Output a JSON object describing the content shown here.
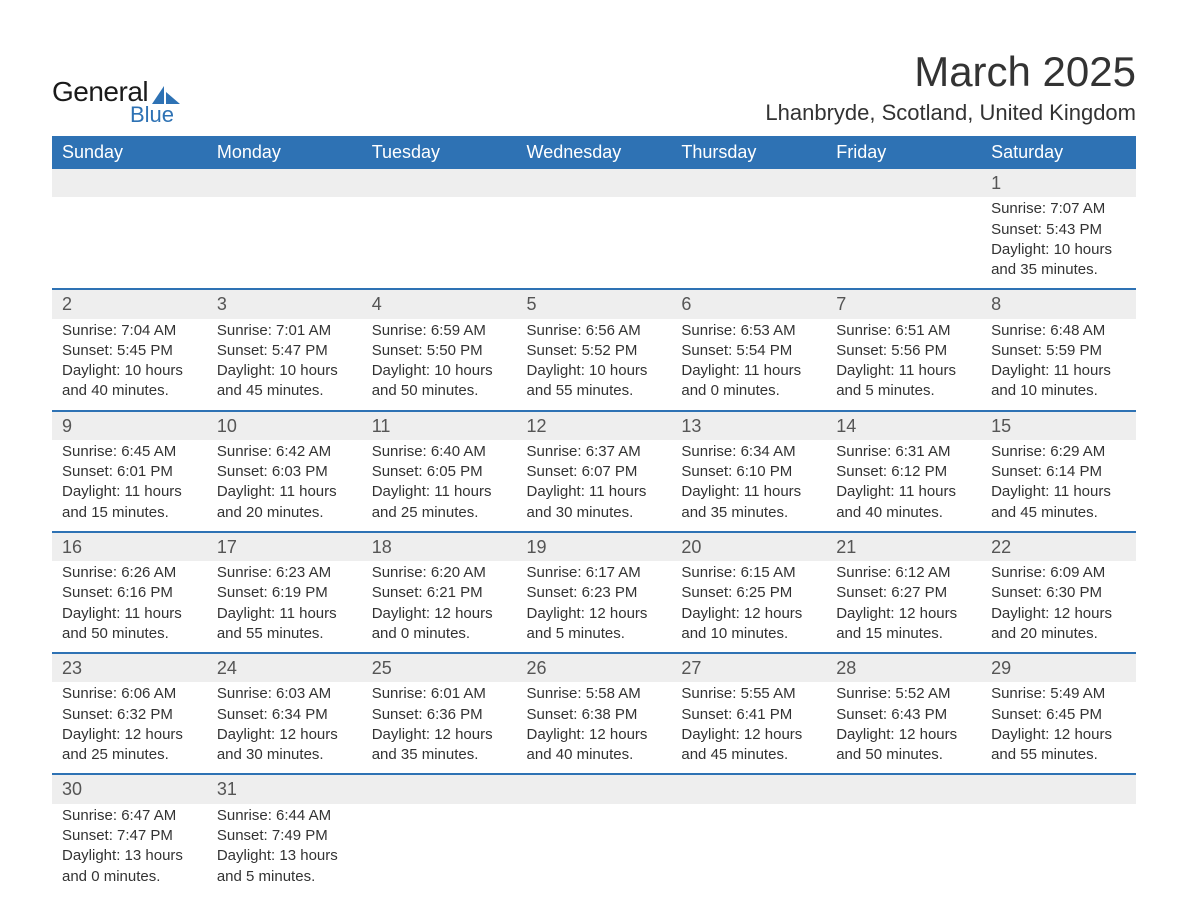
{
  "logo": {
    "text1": "General",
    "text2": "Blue",
    "shape_color": "#2e72b4"
  },
  "title": "March 2025",
  "location": "Lhanbryde, Scotland, United Kingdom",
  "colors": {
    "header_bg": "#2e72b4",
    "header_text": "#ffffff",
    "row_border": "#2e72b4",
    "daynum_bg": "#eeeeee",
    "text": "#333333"
  },
  "fonts": {
    "title_pt": 42,
    "location_pt": 22,
    "dayhead_pt": 18,
    "daynum_pt": 18,
    "body_pt": 15
  },
  "day_headers": [
    "Sunday",
    "Monday",
    "Tuesday",
    "Wednesday",
    "Thursday",
    "Friday",
    "Saturday"
  ],
  "weeks": [
    [
      null,
      null,
      null,
      null,
      null,
      null,
      {
        "n": "1",
        "sunrise": "7:07 AM",
        "sunset": "5:43 PM",
        "dl1": "10 hours",
        "dl2": "and 35 minutes."
      }
    ],
    [
      {
        "n": "2",
        "sunrise": "7:04 AM",
        "sunset": "5:45 PM",
        "dl1": "10 hours",
        "dl2": "and 40 minutes."
      },
      {
        "n": "3",
        "sunrise": "7:01 AM",
        "sunset": "5:47 PM",
        "dl1": "10 hours",
        "dl2": "and 45 minutes."
      },
      {
        "n": "4",
        "sunrise": "6:59 AM",
        "sunset": "5:50 PM",
        "dl1": "10 hours",
        "dl2": "and 50 minutes."
      },
      {
        "n": "5",
        "sunrise": "6:56 AM",
        "sunset": "5:52 PM",
        "dl1": "10 hours",
        "dl2": "and 55 minutes."
      },
      {
        "n": "6",
        "sunrise": "6:53 AM",
        "sunset": "5:54 PM",
        "dl1": "11 hours",
        "dl2": "and 0 minutes."
      },
      {
        "n": "7",
        "sunrise": "6:51 AM",
        "sunset": "5:56 PM",
        "dl1": "11 hours",
        "dl2": "and 5 minutes."
      },
      {
        "n": "8",
        "sunrise": "6:48 AM",
        "sunset": "5:59 PM",
        "dl1": "11 hours",
        "dl2": "and 10 minutes."
      }
    ],
    [
      {
        "n": "9",
        "sunrise": "6:45 AM",
        "sunset": "6:01 PM",
        "dl1": "11 hours",
        "dl2": "and 15 minutes."
      },
      {
        "n": "10",
        "sunrise": "6:42 AM",
        "sunset": "6:03 PM",
        "dl1": "11 hours",
        "dl2": "and 20 minutes."
      },
      {
        "n": "11",
        "sunrise": "6:40 AM",
        "sunset": "6:05 PM",
        "dl1": "11 hours",
        "dl2": "and 25 minutes."
      },
      {
        "n": "12",
        "sunrise": "6:37 AM",
        "sunset": "6:07 PM",
        "dl1": "11 hours",
        "dl2": "and 30 minutes."
      },
      {
        "n": "13",
        "sunrise": "6:34 AM",
        "sunset": "6:10 PM",
        "dl1": "11 hours",
        "dl2": "and 35 minutes."
      },
      {
        "n": "14",
        "sunrise": "6:31 AM",
        "sunset": "6:12 PM",
        "dl1": "11 hours",
        "dl2": "and 40 minutes."
      },
      {
        "n": "15",
        "sunrise": "6:29 AM",
        "sunset": "6:14 PM",
        "dl1": "11 hours",
        "dl2": "and 45 minutes."
      }
    ],
    [
      {
        "n": "16",
        "sunrise": "6:26 AM",
        "sunset": "6:16 PM",
        "dl1": "11 hours",
        "dl2": "and 50 minutes."
      },
      {
        "n": "17",
        "sunrise": "6:23 AM",
        "sunset": "6:19 PM",
        "dl1": "11 hours",
        "dl2": "and 55 minutes."
      },
      {
        "n": "18",
        "sunrise": "6:20 AM",
        "sunset": "6:21 PM",
        "dl1": "12 hours",
        "dl2": "and 0 minutes."
      },
      {
        "n": "19",
        "sunrise": "6:17 AM",
        "sunset": "6:23 PM",
        "dl1": "12 hours",
        "dl2": "and 5 minutes."
      },
      {
        "n": "20",
        "sunrise": "6:15 AM",
        "sunset": "6:25 PM",
        "dl1": "12 hours",
        "dl2": "and 10 minutes."
      },
      {
        "n": "21",
        "sunrise": "6:12 AM",
        "sunset": "6:27 PM",
        "dl1": "12 hours",
        "dl2": "and 15 minutes."
      },
      {
        "n": "22",
        "sunrise": "6:09 AM",
        "sunset": "6:30 PM",
        "dl1": "12 hours",
        "dl2": "and 20 minutes."
      }
    ],
    [
      {
        "n": "23",
        "sunrise": "6:06 AM",
        "sunset": "6:32 PM",
        "dl1": "12 hours",
        "dl2": "and 25 minutes."
      },
      {
        "n": "24",
        "sunrise": "6:03 AM",
        "sunset": "6:34 PM",
        "dl1": "12 hours",
        "dl2": "and 30 minutes."
      },
      {
        "n": "25",
        "sunrise": "6:01 AM",
        "sunset": "6:36 PM",
        "dl1": "12 hours",
        "dl2": "and 35 minutes."
      },
      {
        "n": "26",
        "sunrise": "5:58 AM",
        "sunset": "6:38 PM",
        "dl1": "12 hours",
        "dl2": "and 40 minutes."
      },
      {
        "n": "27",
        "sunrise": "5:55 AM",
        "sunset": "6:41 PM",
        "dl1": "12 hours",
        "dl2": "and 45 minutes."
      },
      {
        "n": "28",
        "sunrise": "5:52 AM",
        "sunset": "6:43 PM",
        "dl1": "12 hours",
        "dl2": "and 50 minutes."
      },
      {
        "n": "29",
        "sunrise": "5:49 AM",
        "sunset": "6:45 PM",
        "dl1": "12 hours",
        "dl2": "and 55 minutes."
      }
    ],
    [
      {
        "n": "30",
        "sunrise": "6:47 AM",
        "sunset": "7:47 PM",
        "dl1": "13 hours",
        "dl2": "and 0 minutes."
      },
      {
        "n": "31",
        "sunrise": "6:44 AM",
        "sunset": "7:49 PM",
        "dl1": "13 hours",
        "dl2": "and 5 minutes."
      },
      null,
      null,
      null,
      null,
      null
    ]
  ],
  "labels": {
    "sunrise": "Sunrise: ",
    "sunset": "Sunset: ",
    "daylight": "Daylight: "
  }
}
